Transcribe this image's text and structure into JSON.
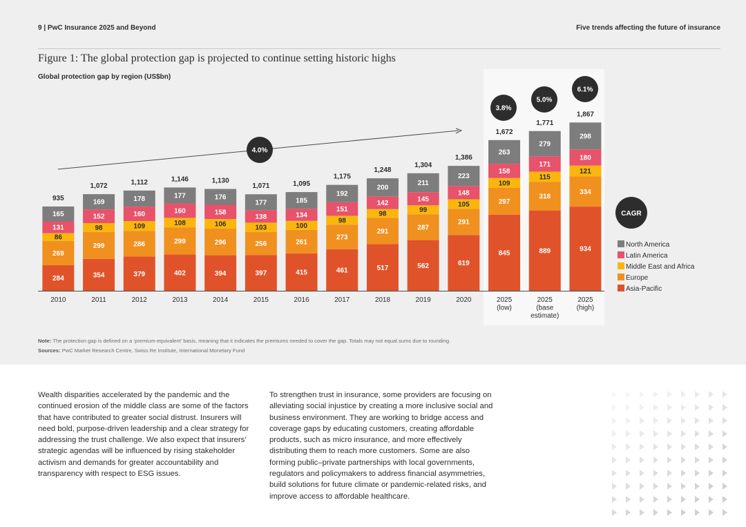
{
  "header": {
    "left": "9 | PwC Insurance 2025 and Beyond",
    "right": "Five trends affecting the future of insurance"
  },
  "figure": {
    "title": "Figure 1: The global protection gap is projected to continue setting historic highs",
    "subtitle": "Global protection gap by region (US$bn)"
  },
  "chart_data": {
    "type": "bar",
    "stacked": true,
    "categories": [
      "2010",
      "2011",
      "2012",
      "2013",
      "2014",
      "2015",
      "2016",
      "2017",
      "2018",
      "2019",
      "2020",
      "2025 (low)",
      "2025 (base estimate)",
      "2025 (high)"
    ],
    "category_label_lines": [
      [
        "2010"
      ],
      [
        "2011"
      ],
      [
        "2012"
      ],
      [
        "2013"
      ],
      [
        "2014"
      ],
      [
        "2015"
      ],
      [
        "2016"
      ],
      [
        "2017"
      ],
      [
        "2018"
      ],
      [
        "2019"
      ],
      [
        "2020"
      ],
      [
        "2025",
        "(low)"
      ],
      [
        "2025",
        "(base",
        "estimate)"
      ],
      [
        "2025",
        "(high)"
      ]
    ],
    "series": [
      {
        "name": "Asia-Pacific",
        "color": "#e0532a",
        "values": [
          284,
          354,
          379,
          402,
          394,
          397,
          415,
          461,
          517,
          562,
          619,
          845,
          889,
          934
        ]
      },
      {
        "name": "Europe",
        "color": "#f0901f",
        "values": [
          269,
          299,
          286,
          299,
          296,
          256,
          261,
          273,
          291,
          287,
          291,
          297,
          318,
          334
        ]
      },
      {
        "name": "Middle East and Africa",
        "color": "#fbb60d",
        "values": [
          86,
          98,
          109,
          108,
          106,
          103,
          100,
          98,
          98,
          99,
          105,
          109,
          115,
          121
        ]
      },
      {
        "name": "Latin America",
        "color": "#e8526a",
        "values": [
          131,
          152,
          160,
          160,
          158,
          138,
          134,
          151,
          142,
          145,
          148,
          158,
          171,
          180
        ]
      },
      {
        "name": "North America",
        "color": "#7d7d7d",
        "values": [
          165,
          169,
          178,
          177,
          176,
          177,
          185,
          192,
          200,
          211,
          223,
          263,
          279,
          298
        ]
      }
    ],
    "totals": [
      "935",
      "1,072",
      "1,112",
      "1,146",
      "1,130",
      "1,071",
      "1,095",
      "1,175",
      "1,248",
      "1,304",
      "1,386",
      "1,672",
      "1,771",
      "1,867"
    ],
    "ylim": [
      0,
      2000
    ],
    "cagr_label": "CAGR",
    "cagr_badges": [
      "4.0%",
      "3.8%",
      "5.0%",
      "6.1%"
    ],
    "legend_position": "right",
    "projection_highlight": "2025 columns shaded"
  },
  "notes": {
    "note_label": "Note:",
    "note_text": " The protection gap is defined on a ‘premium-equivalent’ basis, meaning that it indicates the premiums needed to cover the gap. Totals may not equal sums due to rounding.",
    "sources_label": "Sources:",
    "sources_text": " PwC Market Research Centre, Swiss Re Institute, International Monetary Fund"
  },
  "body": {
    "col1": "Wealth disparities accelerated by the pandemic and the continued erosion of the middle class are some of the factors that have contributed to greater social distrust. Insurers will need bold, purpose-driven leadership and a clear strategy for addressing the trust challenge. We also expect that insurers’ strategic agendas will be influenced by rising stakeholder activism and demands for greater accountability and transparency with respect to ESG issues.",
    "col2": "To strengthen trust in insurance, some providers are focusing on alleviating social injustice by creating a more inclusive social and business environment. They are working to bridge access and coverage gaps by educating customers, creating affordable products, such as micro insurance, and more effectively distributing them to reach more customers. Some are also forming public–private partnerships with local governments, regulators and policymakers to address financial asymmetries, build solutions for future climate or pandemic-related risks, and improve access to affordable healthcare."
  },
  "colors": {
    "panel": "#efefef",
    "highlight": "#f8f8f8",
    "badge": "#2d2d2d",
    "text": "#2d2d2d"
  }
}
